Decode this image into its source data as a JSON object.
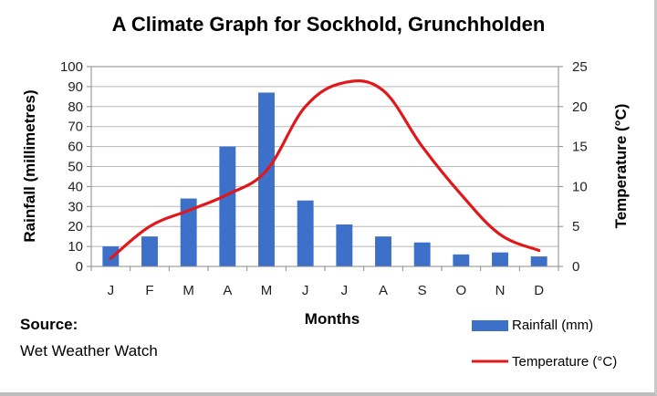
{
  "source": {
    "label": "Source:",
    "value": "Wet Weather Watch"
  },
  "chart_data": {
    "type": "bar+line",
    "title": "A Climate Graph for Sockhold, Grunchholden",
    "xlabel": "Months",
    "ylabel": "Rainfall (millimetres)",
    "y2label": "Temperature (°C)",
    "categories": [
      "J",
      "F",
      "M",
      "A",
      "M",
      "J",
      "J",
      "A",
      "S",
      "O",
      "N",
      "D"
    ],
    "ylim": [
      0,
      100
    ],
    "yticks": [
      0,
      10,
      20,
      30,
      40,
      50,
      60,
      70,
      80,
      90,
      100
    ],
    "y2lim": [
      0,
      25
    ],
    "y2ticks": [
      0,
      5,
      10,
      15,
      20,
      25
    ],
    "grid": true,
    "legend": "bottom-right",
    "series": [
      {
        "name": "Rainfall (mm)",
        "type": "bar",
        "axis": "left",
        "color": "#3d70c8",
        "values": [
          10,
          15,
          34,
          60,
          87,
          33,
          21,
          15,
          12,
          6,
          7,
          5
        ]
      },
      {
        "name": "Temperature (°C)",
        "type": "line",
        "axis": "right",
        "color": "#e0181b",
        "values": [
          1,
          5,
          7,
          9,
          12,
          20,
          23,
          22,
          15,
          9,
          4,
          2
        ]
      }
    ]
  }
}
